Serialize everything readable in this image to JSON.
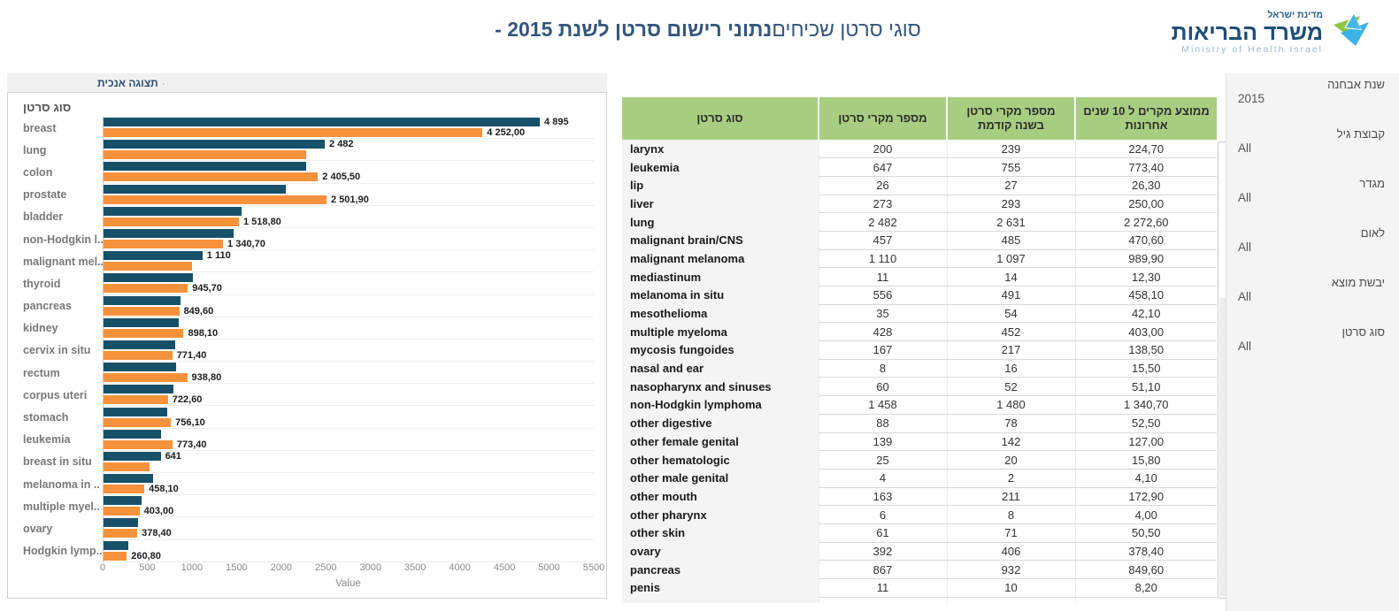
{
  "title": {
    "regular": "סוגי סרטן שכיחים",
    "bold": "נתוני רישום סרטן לשנת 2015 -"
  },
  "logo": {
    "state": "מדינת ישראל",
    "ministry": "משרד הבריאות",
    "english": "Ministry of Health Israel"
  },
  "view_toggle": {
    "bullet": "·",
    "label": "תצוגה אנכית"
  },
  "chart_data": {
    "type": "bar",
    "orientation": "horizontal",
    "axis_title": "סוג סרטן",
    "xlabel": "Value",
    "xlim": [
      0,
      5500
    ],
    "x_ticks": [
      0,
      500,
      1000,
      1500,
      2000,
      2500,
      3000,
      3500,
      4000,
      4500,
      5000,
      5500
    ],
    "grid": "row-dividers",
    "series": [
      {
        "name": "cancer-cases-2015",
        "color": "#175169"
      },
      {
        "name": "10-year-average",
        "color": "#f6923b"
      }
    ],
    "categories": [
      {
        "label": "breast",
        "cases": 4895,
        "cases_label": "4 895",
        "avg": 4252.0,
        "avg_label": "4 252,00"
      },
      {
        "label": "lung",
        "cases": 2482,
        "cases_label": "2 482",
        "avg": 2272.6,
        "avg_label": ""
      },
      {
        "label": "colon",
        "cases": 2270,
        "cases_label": "",
        "avg": 2405.5,
        "avg_label": "2 405,50"
      },
      {
        "label": "prostate",
        "cases": 2050,
        "cases_label": "",
        "avg": 2501.9,
        "avg_label": "2 501,90"
      },
      {
        "label": "bladder",
        "cases": 1545,
        "cases_label": "",
        "avg": 1518.8,
        "avg_label": "1 518,80"
      },
      {
        "label": "non-Hodgkin l..",
        "cases": 1458,
        "cases_label": "",
        "avg": 1340.7,
        "avg_label": "1 340,70"
      },
      {
        "label": "malignant mel..",
        "cases": 1110,
        "cases_label": "1 110",
        "avg": 989.9,
        "avg_label": ""
      },
      {
        "label": "thyroid",
        "cases": 1005,
        "cases_label": "",
        "avg": 945.7,
        "avg_label": "945,70"
      },
      {
        "label": "pancreas",
        "cases": 867,
        "cases_label": "",
        "avg": 849.6,
        "avg_label": "849,60"
      },
      {
        "label": "kidney",
        "cases": 845,
        "cases_label": "",
        "avg": 898.1,
        "avg_label": "898,10"
      },
      {
        "label": "cervix in situ",
        "cases": 800,
        "cases_label": "",
        "avg": 771.4,
        "avg_label": "771,40"
      },
      {
        "label": "rectum",
        "cases": 815,
        "cases_label": "",
        "avg": 938.8,
        "avg_label": "938,80"
      },
      {
        "label": "corpus uteri",
        "cases": 780,
        "cases_label": "",
        "avg": 722.6,
        "avg_label": "722,60"
      },
      {
        "label": "stomach",
        "cases": 715,
        "cases_label": "",
        "avg": 756.1,
        "avg_label": "756,10"
      },
      {
        "label": "leukemia",
        "cases": 647,
        "cases_label": "",
        "avg": 773.4,
        "avg_label": "773,40"
      },
      {
        "label": "breast in situ",
        "cases": 641,
        "cases_label": "641",
        "avg": 520.0,
        "avg_label": ""
      },
      {
        "label": "melanoma in ..",
        "cases": 556,
        "cases_label": "",
        "avg": 458.1,
        "avg_label": "458,10"
      },
      {
        "label": "multiple myel..",
        "cases": 428,
        "cases_label": "",
        "avg": 403.0,
        "avg_label": "403,00"
      },
      {
        "label": "ovary",
        "cases": 392,
        "cases_label": "",
        "avg": 378.4,
        "avg_label": "378,40"
      },
      {
        "label": "Hodgkin lymp..",
        "cases": 280,
        "cases_label": "",
        "avg": 260.8,
        "avg_label": "260,80"
      }
    ]
  },
  "table": {
    "columns": [
      "סוג סרטן",
      "מספר מקרי סרטן",
      "מספר מקרי סרטן בשנה קודמת",
      "ממוצע מקרים ל 10 שנים אחרונות"
    ],
    "rows": [
      [
        "larynx",
        "200",
        "239",
        "224,70"
      ],
      [
        "leukemia",
        "647",
        "755",
        "773,40"
      ],
      [
        "lip",
        "26",
        "27",
        "26,30"
      ],
      [
        "liver",
        "273",
        "293",
        "250,00"
      ],
      [
        "lung",
        "2 482",
        "2 631",
        "2 272,60"
      ],
      [
        "malignant brain/CNS",
        "457",
        "485",
        "470,60"
      ],
      [
        "malignant melanoma",
        "1 110",
        "1 097",
        "989,90"
      ],
      [
        "mediastinum",
        "11",
        "14",
        "12,30"
      ],
      [
        "melanoma in situ",
        "556",
        "491",
        "458,10"
      ],
      [
        "mesothelioma",
        "35",
        "54",
        "42,10"
      ],
      [
        "multiple myeloma",
        "428",
        "452",
        "403,00"
      ],
      [
        "mycosis fungoides",
        "167",
        "217",
        "138,50"
      ],
      [
        "nasal and ear",
        "8",
        "16",
        "15,50"
      ],
      [
        "nasopharynx and sinuses",
        "60",
        "52",
        "51,10"
      ],
      [
        "non-Hodgkin lymphoma",
        "1 458",
        "1 480",
        "1 340,70"
      ],
      [
        "other digestive",
        "88",
        "78",
        "52,50"
      ],
      [
        "other female genital",
        "139",
        "142",
        "127,00"
      ],
      [
        "other hematologic",
        "25",
        "20",
        "15,80"
      ],
      [
        "other male genital",
        "4",
        "2",
        "4,10"
      ],
      [
        "other mouth",
        "163",
        "211",
        "172,90"
      ],
      [
        "other pharynx",
        "6",
        "8",
        "4,00"
      ],
      [
        "other skin",
        "61",
        "71",
        "50,50"
      ],
      [
        "ovary",
        "392",
        "406",
        "378,40"
      ],
      [
        "pancreas",
        "867",
        "932",
        "849,60"
      ],
      [
        "penis",
        "11",
        "10",
        "8,20"
      ],
      [
        "",
        "",
        "",
        ""
      ]
    ]
  },
  "filters": [
    {
      "label": "שנת אבחנה",
      "value": "2015"
    },
    {
      "label": "קבוצת גיל",
      "value": "All"
    },
    {
      "label": "מגדר",
      "value": "All"
    },
    {
      "label": "לאום",
      "value": "All"
    },
    {
      "label": "יבשת מוצא",
      "value": "All"
    },
    {
      "label": "סוג סרטן",
      "value": "All"
    }
  ],
  "colors": {
    "bar_cases": "#175169",
    "bar_average": "#f6923b",
    "table_header_green": "#a7ce80",
    "title_blue": "#33567d",
    "sidebar_bg": "#f4f4f4"
  }
}
